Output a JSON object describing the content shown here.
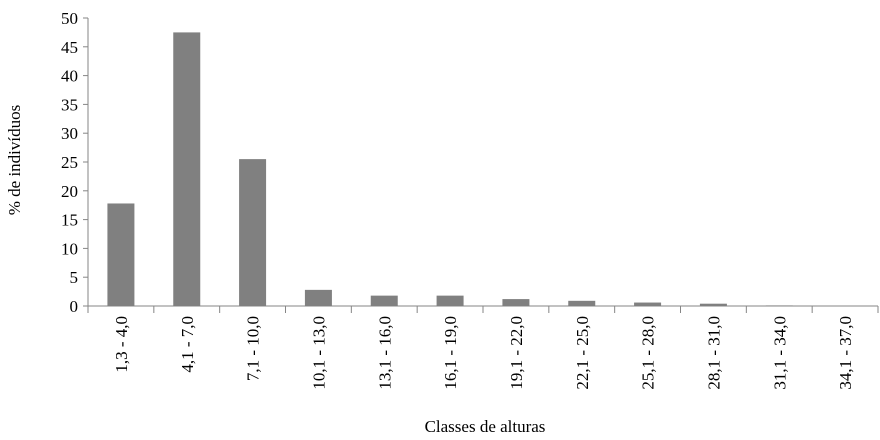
{
  "chart_data": {
    "type": "bar",
    "categories": [
      "1,3 - 4,0",
      "4,1 - 7,0",
      "7,1 - 10,0",
      "10,1 - 13,0",
      "13,1 - 16,0",
      "16,1 - 19,0",
      "19,1 - 22,0",
      "22,1 - 25,0",
      "25,1 - 28,0",
      "28,1 - 31,0",
      "31,1 - 34,0",
      "34,1 - 37,0"
    ],
    "values": [
      17.8,
      47.5,
      25.5,
      2.8,
      1.8,
      1.8,
      1.2,
      0.9,
      0.6,
      0.4,
      0.1,
      0
    ],
    "color": "#808080",
    "x_label": "Classes de alturas",
    "y_label": "% de indivíduos",
    "ylim": [
      0,
      50
    ],
    "yticks": [
      0,
      5,
      10,
      15,
      20,
      25,
      30,
      35,
      40,
      45,
      50
    ],
    "grid": false
  }
}
